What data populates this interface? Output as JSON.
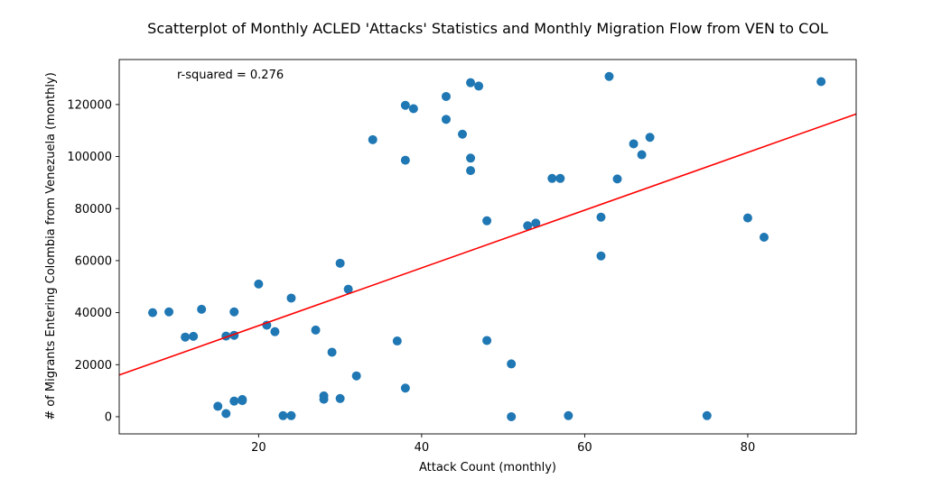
{
  "chart_data": {
    "type": "scatter",
    "title": "Scatterplot of Monthly ACLED 'Attacks' Statistics and Monthly Migration Flow from VEN to COL",
    "xlabel": "Attack Count (monthly)",
    "ylabel": "# of Migrants Entering Colombia from Venezuela (monthly)",
    "annotation": "r-squared = 0.276",
    "xlim": [
      2.9,
      93.3
    ],
    "ylim": [
      -6600,
      137300
    ],
    "x_ticks": [
      20,
      40,
      60,
      80
    ],
    "y_ticks": [
      0,
      20000,
      40000,
      60000,
      80000,
      100000,
      120000
    ],
    "grid": false,
    "colors": {
      "points": "#1f77b4",
      "fit_line": "#ff0000"
    },
    "fit_line": {
      "slope": 1110,
      "intercept": 12800
    },
    "x": [
      7,
      9,
      11,
      12,
      13,
      15,
      16,
      16,
      17,
      17,
      17,
      18,
      18,
      20,
      21,
      22,
      23,
      24,
      24,
      27,
      28,
      28,
      29,
      30,
      30,
      31,
      32,
      34,
      37,
      38,
      38,
      38,
      39,
      43,
      43,
      45,
      46,
      46,
      46,
      47,
      48,
      48,
      51,
      51,
      53,
      54,
      56,
      57,
      58,
      62,
      62,
      63,
      64,
      66,
      67,
      68,
      75,
      80,
      82,
      89
    ],
    "y": [
      40000,
      40300,
      30600,
      30900,
      41300,
      4000,
      1200,
      31000,
      6000,
      40300,
      31300,
      6600,
      6200,
      51000,
      35200,
      32700,
      400,
      400,
      45600,
      33300,
      8000,
      6700,
      24800,
      59000,
      7000,
      49000,
      15700,
      106500,
      29100,
      119700,
      98600,
      11000,
      118400,
      123100,
      114300,
      108600,
      128400,
      99400,
      94600,
      127100,
      75300,
      29300,
      20300,
      0,
      73400,
      74400,
      91600,
      91600,
      400,
      76700,
      61800,
      130800,
      91400,
      104900,
      100700,
      107400,
      400,
      76400,
      69000,
      128800
    ]
  }
}
